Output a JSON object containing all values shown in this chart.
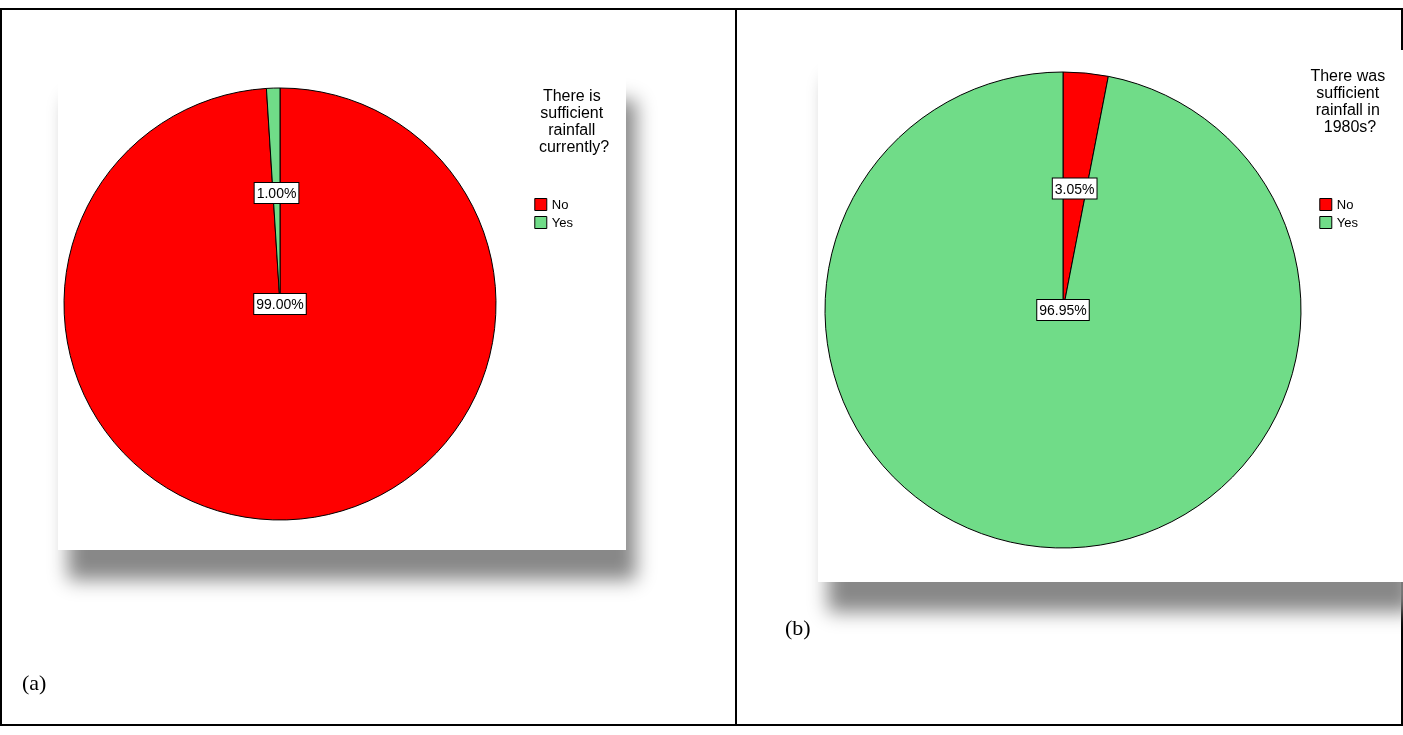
{
  "chart_data": [
    {
      "type": "pie",
      "legend_title": "There is sufficient rainfall currently?",
      "categories": [
        "No",
        "Yes"
      ],
      "values": [
        99.0,
        1.0
      ],
      "colors": [
        "#ff0000",
        "#70dc88"
      ],
      "value_labels": [
        "99.00%",
        "1.00%"
      ],
      "legend": "top right",
      "annotations": [
        "(a)"
      ]
    },
    {
      "type": "pie",
      "legend_title": "There was sufficient rainfall in 1980s?",
      "categories": [
        "No",
        "Yes"
      ],
      "values": [
        3.05,
        96.95
      ],
      "colors": [
        "#ff0000",
        "#70dc88"
      ],
      "value_labels": [
        "3.05%",
        "96.95%"
      ],
      "legend": "top right",
      "annotations": [
        "(b)"
      ]
    }
  ]
}
